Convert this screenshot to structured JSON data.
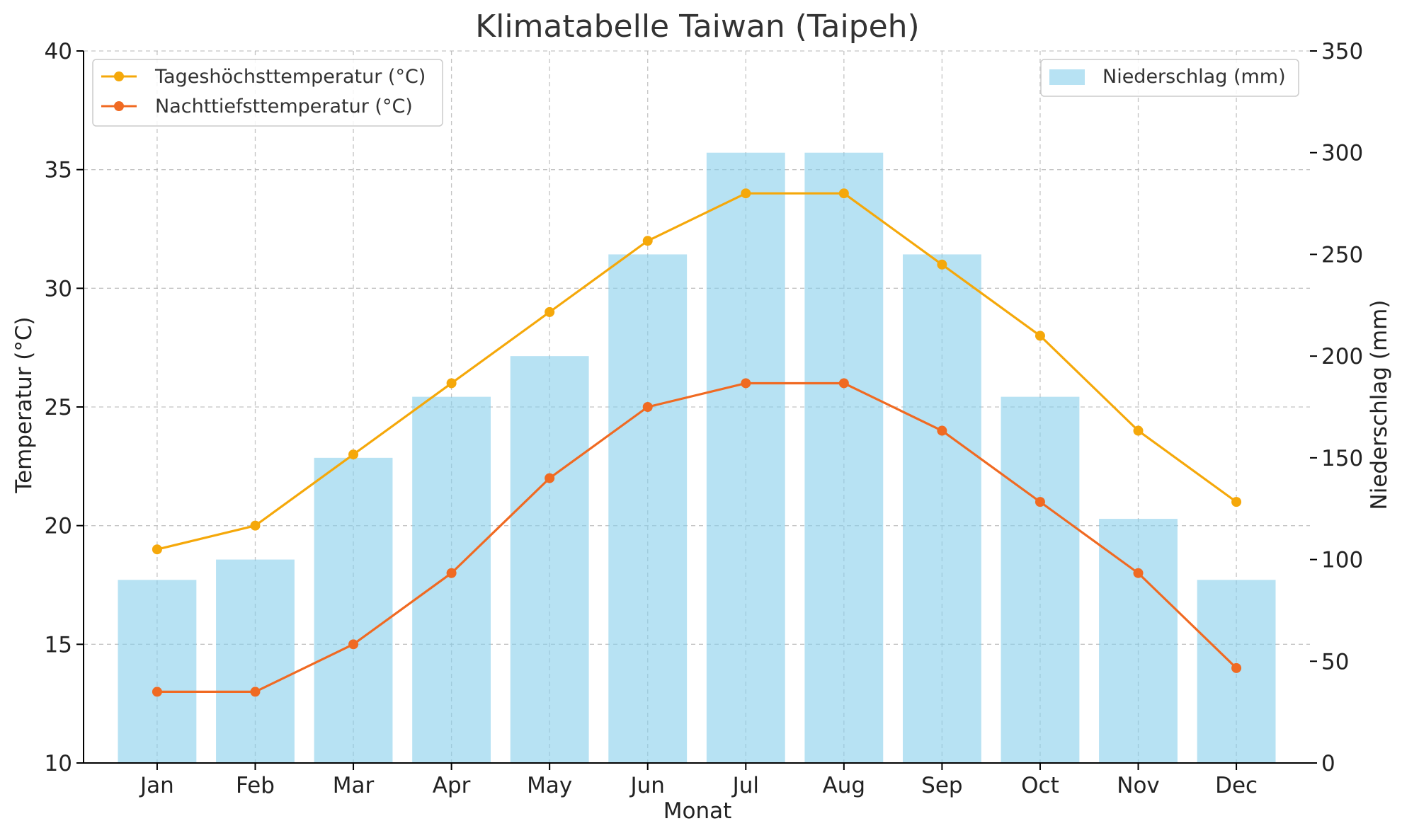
{
  "chart_data": {
    "type": "bar",
    "title": "Klimatabelle Taiwan (Taipeh)",
    "xlabel": "Monat",
    "ylabel_left": "Temperatur (°C)",
    "ylabel_right": "Niederschlag (mm)",
    "categories": [
      "Jan",
      "Feb",
      "Mar",
      "Apr",
      "May",
      "Jun",
      "Jul",
      "Aug",
      "Sep",
      "Oct",
      "Nov",
      "Dec"
    ],
    "left_axis": {
      "ylim": [
        10,
        40
      ],
      "ticks": [
        "10",
        "15",
        "20",
        "25",
        "30",
        "35",
        "40"
      ]
    },
    "right_axis": {
      "ylim": [
        0,
        350
      ],
      "ticks": [
        "0",
        "50",
        "100",
        "150",
        "200",
        "250",
        "300",
        "350"
      ]
    },
    "grid": true,
    "series": [
      {
        "name": "Tageshöchsttemperatur (°C)",
        "type": "line",
        "axis": "left",
        "color": "#f5a80a",
        "values": [
          19,
          20,
          23,
          26,
          29,
          32,
          34,
          34,
          31,
          28,
          24,
          21
        ]
      },
      {
        "name": "Nachttiefsttemperatur (°C)",
        "type": "line",
        "axis": "left",
        "color": "#f06a22",
        "values": [
          13,
          13,
          15,
          18,
          22,
          25,
          26,
          26,
          24,
          21,
          18,
          14
        ]
      },
      {
        "name": "Niederschlag (mm)",
        "type": "bar",
        "axis": "right",
        "color": "#87ceeb",
        "values": [
          90,
          100,
          150,
          180,
          200,
          250,
          300,
          300,
          250,
          180,
          120,
          90
        ]
      }
    ],
    "legend_lines_placement": "top-left",
    "legend_bars_placement": "top-right"
  }
}
